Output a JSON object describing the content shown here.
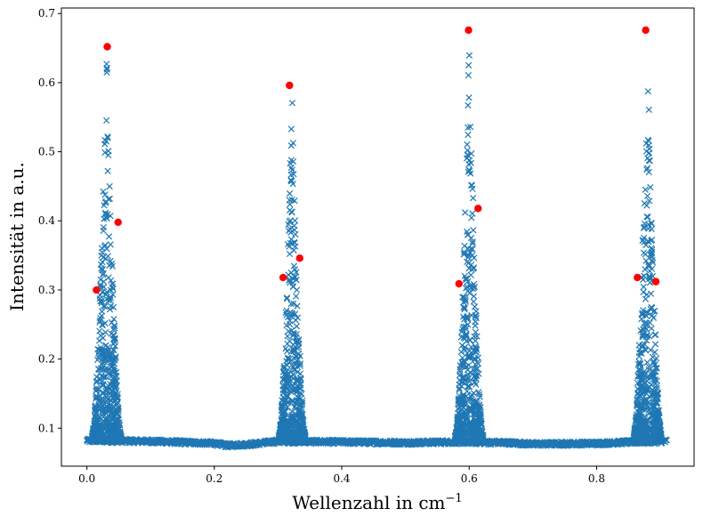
{
  "chart_data": {
    "type": "scatter",
    "xlabel": "Wellenzahl in cm",
    "xlabel_exponent": "−1",
    "ylabel": "Intensität in a.u.",
    "xlim": [
      -0.04,
      0.953
    ],
    "ylim": [
      0.045,
      0.708
    ],
    "grid": false,
    "legend": "none",
    "x_ticks": [
      0.0,
      0.2,
      0.4,
      0.6,
      0.8
    ],
    "x_tick_labels": [
      "0.0",
      "0.2",
      "0.4",
      "0.6",
      "0.8"
    ],
    "y_ticks": [
      0.1,
      0.2,
      0.3,
      0.4,
      0.5,
      0.6,
      0.7
    ],
    "y_tick_labels": [
      "0.1",
      "0.2",
      "0.3",
      "0.4",
      "0.5",
      "0.6",
      "0.7"
    ],
    "series": [
      {
        "marker": "x",
        "color": "#1f77b4",
        "x_range": [
          0.0,
          0.91
        ],
        "baseline": [
          [
            0.0,
            0.082
          ],
          [
            0.1,
            0.081
          ],
          [
            0.2,
            0.078
          ],
          [
            0.22,
            0.075
          ],
          [
            0.26,
            0.077
          ],
          [
            0.3,
            0.081
          ],
          [
            0.4,
            0.08
          ],
          [
            0.5,
            0.079
          ],
          [
            0.58,
            0.08
          ],
          [
            0.66,
            0.079
          ],
          [
            0.7,
            0.077
          ],
          [
            0.8,
            0.078
          ],
          [
            0.86,
            0.08
          ],
          [
            0.91,
            0.081
          ]
        ],
        "clusters": [
          {
            "center": 0.031,
            "width": 0.023,
            "max": 0.652
          },
          {
            "center": 0.322,
            "width": 0.021,
            "max": 0.596
          },
          {
            "center": 0.6,
            "width": 0.022,
            "max": 0.676
          },
          {
            "center": 0.88,
            "width": 0.022,
            "max": 0.676
          }
        ]
      },
      {
        "marker": "o",
        "color": "#ff0000",
        "points": [
          [
            0.015,
            0.3
          ],
          [
            0.032,
            0.652
          ],
          [
            0.049,
            0.398
          ],
          [
            0.308,
            0.318
          ],
          [
            0.318,
            0.596
          ],
          [
            0.334,
            0.346
          ],
          [
            0.584,
            0.309
          ],
          [
            0.599,
            0.676
          ],
          [
            0.614,
            0.418
          ],
          [
            0.864,
            0.318
          ],
          [
            0.877,
            0.676
          ],
          [
            0.893,
            0.312
          ]
        ]
      }
    ]
  }
}
